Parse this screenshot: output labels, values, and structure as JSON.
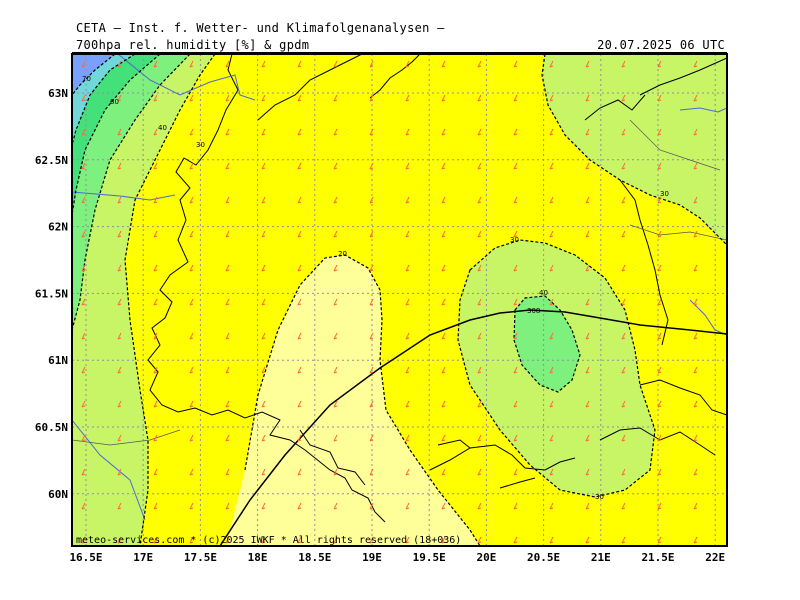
{
  "header": {
    "line1": "CETA — Inst. f. Wetter- und Klimafolgenanalysen —",
    "line2": "700hpa rel. humidity [%] & gpdm",
    "datetime": "20.07.2025 06 UTC"
  },
  "footer": "meteo-services.com * (c)2025 IWKF * All rights reserved (18+036)",
  "axes": {
    "x_ticks": [
      "16.5E",
      "17E",
      "17.5E",
      "18E",
      "18.5E",
      "19E",
      "19.5E",
      "20E",
      "20.5E",
      "21E",
      "21.5E",
      "22E"
    ],
    "y_ticks": [
      "63N",
      "62.5N",
      "62N",
      "61.5N",
      "61N",
      "60.5N",
      "60N"
    ]
  },
  "contour_labels": {
    "c70": "70",
    "c60": "60",
    "c40a": "40",
    "c30a": "30",
    "c20": "20",
    "c30b": "30",
    "c40b": "40",
    "c30c": "30",
    "c30d": "30",
    "gpdm": "308"
  },
  "colors": {
    "rh_lt20": "#ffff9a",
    "rh_20_30": "#ffff00",
    "rh_30_40": "#c8f566",
    "rh_40_50": "#7ef07e",
    "rh_50_60": "#44e07a",
    "rh_60_70": "#70d8d8",
    "rh_70_80": "#7aa0ff",
    "coast": "#000000",
    "border": "#4a6ad0",
    "grid": "#9090a0",
    "wind": "#ff6a3a"
  }
}
